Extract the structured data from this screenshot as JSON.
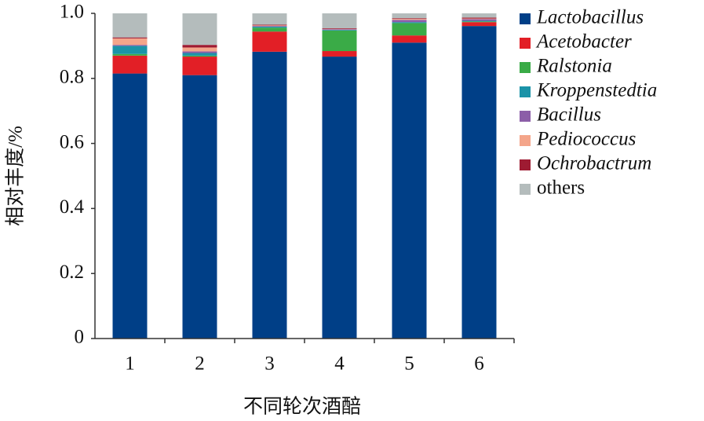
{
  "chart_data": {
    "type": "stacked_bar",
    "x_label": "不同轮次酒醅",
    "y_label": "相对丰度/%",
    "categories": [
      "1",
      "2",
      "3",
      "4",
      "5",
      "6"
    ],
    "series": [
      {
        "name": "Lactobacillus",
        "color": "#003f87",
        "values": [
          0.815,
          0.81,
          0.882,
          0.867,
          0.91,
          0.961
        ]
      },
      {
        "name": "Acetobacter",
        "color": "#e21f26",
        "values": [
          0.055,
          0.057,
          0.062,
          0.017,
          0.022,
          0.012
        ]
      },
      {
        "name": "Ralstonia",
        "color": "#3aab47",
        "values": [
          0.005,
          0.003,
          0.012,
          0.063,
          0.038,
          0.002
        ]
      },
      {
        "name": "Kroppenstedtia",
        "color": "#1b93a8",
        "values": [
          0.025,
          0.008,
          0.003,
          0.002,
          0.003,
          0.002
        ]
      },
      {
        "name": "Bacillus",
        "color": "#8c5ea8",
        "values": [
          0.003,
          0.005,
          0.002,
          0.002,
          0.007,
          0.005
        ]
      },
      {
        "name": "Pediococcus",
        "color": "#f4a58a",
        "values": [
          0.02,
          0.012,
          0.002,
          0.001,
          0.003,
          0.002
        ]
      },
      {
        "name": "Ochrobactrum",
        "color": "#9e1b32",
        "values": [
          0.003,
          0.008,
          0.002,
          0.002,
          0.002,
          0.003
        ]
      },
      {
        "name": "others",
        "color": "#b4bcbc",
        "values": [
          0.074,
          0.097,
          0.035,
          0.046,
          0.015,
          0.013
        ]
      }
    ],
    "ylim": [
      0,
      1
    ],
    "yticks": [
      0,
      0.2,
      0.4,
      0.6,
      0.8,
      {
        "value": 1,
        "label": "1.0"
      }
    ],
    "legend": "right"
  }
}
